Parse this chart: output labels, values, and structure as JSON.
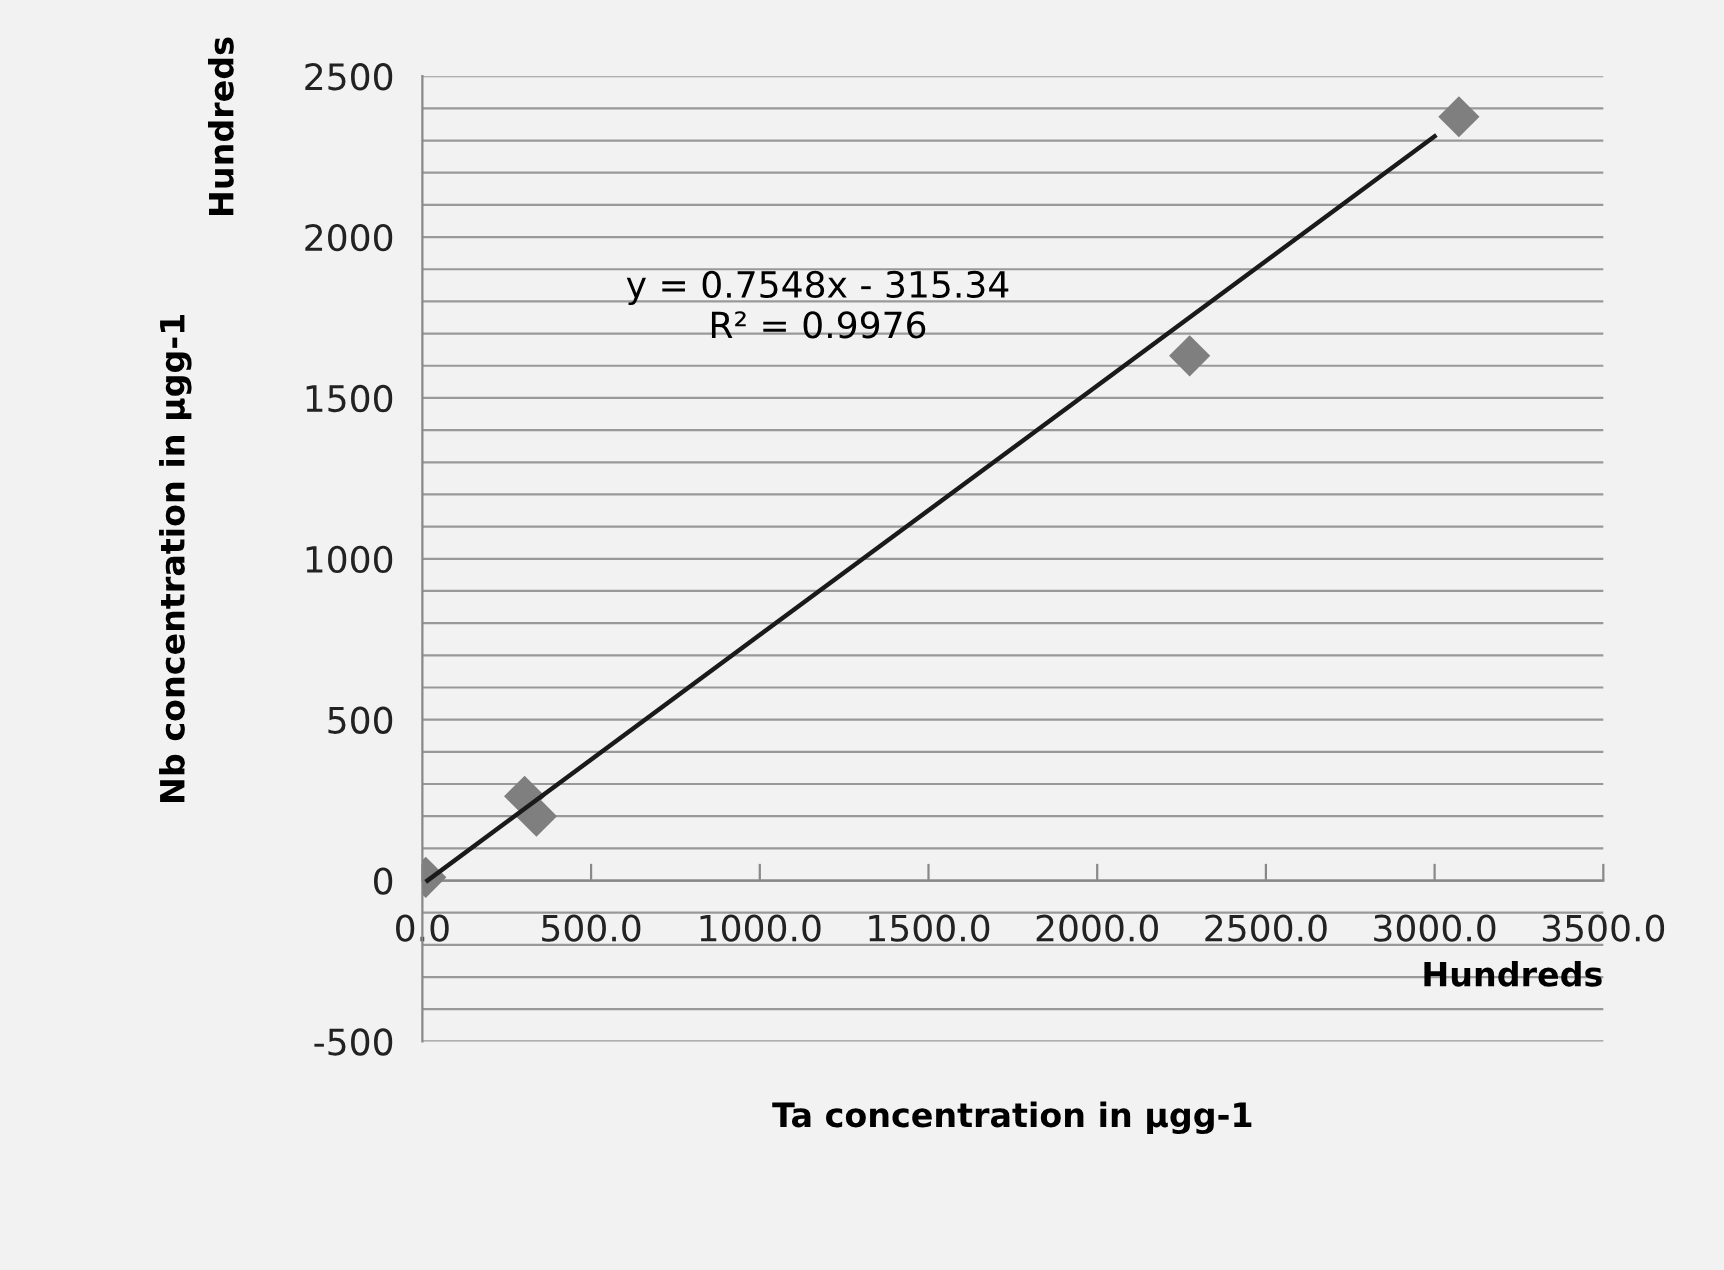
{
  "chart_data": {
    "type": "scatter",
    "xlabel": "Ta concentration in µgg-1",
    "ylabel": "Nb concentration in µgg-1",
    "annotations": [
      "y = 0.7548x - 315.34\nR² = 0.9976",
      "Hundreds",
      "Hundreds"
    ],
    "series": [
      {
        "color": "#7f7f7f",
        "marker": "diamond",
        "x": [
          10,
          303,
          338,
          2274,
          3072
        ],
        "values": [
          10,
          262,
          200,
          1631,
          2374
        ]
      },
      {
        "type": "line",
        "color": "#1a1a1a",
        "marker": "none",
        "line_style": "solid",
        "x": [
          15,
          3000
        ],
        "values": [
          0,
          2313
        ]
      }
    ],
    "xlim": [
      0,
      3500
    ],
    "ylim": [
      -500,
      2500
    ],
    "xticks": [
      {
        "value": 0,
        "label": "0.0"
      },
      {
        "value": 500,
        "label": "500.0"
      },
      {
        "value": 1000,
        "label": "1000.0"
      },
      {
        "value": 1500,
        "label": "1500.0"
      },
      {
        "value": 2000,
        "label": "2000.0"
      },
      {
        "value": 2500,
        "label": "2500.0"
      },
      {
        "value": 3000,
        "label": "3000.0"
      },
      {
        "value": 3500,
        "label": "3500.0"
      }
    ],
    "yticks": [
      -500,
      {
        "value": -400,
        "label": null
      },
      {
        "value": -300,
        "label": null
      },
      {
        "value": -200,
        "label": null
      },
      {
        "value": -100,
        "label": null
      },
      0,
      {
        "value": 100,
        "label": null
      },
      {
        "value": 200,
        "label": null
      },
      {
        "value": 300,
        "label": null
      },
      {
        "value": 400,
        "label": null
      },
      500,
      {
        "value": 600,
        "label": null
      },
      {
        "value": 700,
        "label": null
      },
      {
        "value": 800,
        "label": null
      },
      {
        "value": 900,
        "label": null
      },
      1000,
      {
        "value": 1100,
        "label": null
      },
      {
        "value": 1200,
        "label": null
      },
      {
        "value": 1300,
        "label": null
      },
      {
        "value": 1400,
        "label": null
      },
      1500,
      {
        "value": 1600,
        "label": null
      },
      {
        "value": 1700,
        "label": null
      },
      {
        "value": 1800,
        "label": null
      },
      {
        "value": 1900,
        "label": null
      },
      2000,
      {
        "value": 2100,
        "label": null
      },
      {
        "value": 2200,
        "label": null
      },
      {
        "value": 2300,
        "label": null
      },
      {
        "value": 2400,
        "label": null
      },
      2500
    ],
    "grid": "y",
    "legend": false
  }
}
